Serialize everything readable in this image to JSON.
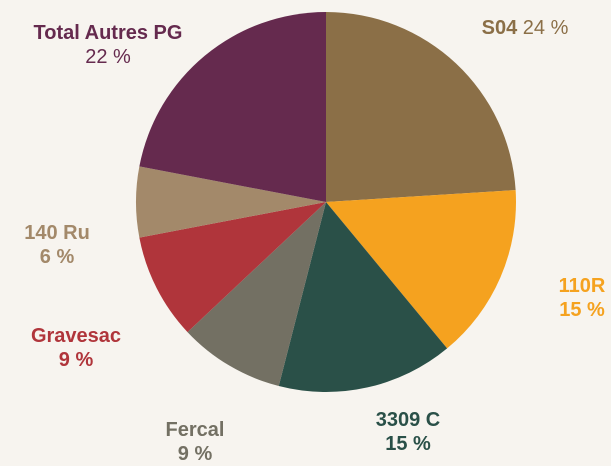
{
  "chart_data": {
    "type": "pie",
    "categories": [
      "S04",
      "110R",
      "3309 C",
      "Fercal",
      "Gravesac",
      "140 Ru",
      "Total Autres PG"
    ],
    "values": [
      24,
      15,
      15,
      9,
      9,
      6,
      22
    ],
    "value_labels": [
      "24 %",
      "15 %",
      "15 %",
      "9 %",
      "9 %",
      "6 %",
      "22 %"
    ],
    "colors": [
      "#8b6f47",
      "#f5a21f",
      "#2a5048",
      "#737063",
      "#b0353b",
      "#a3896a",
      "#652a4e"
    ]
  }
}
